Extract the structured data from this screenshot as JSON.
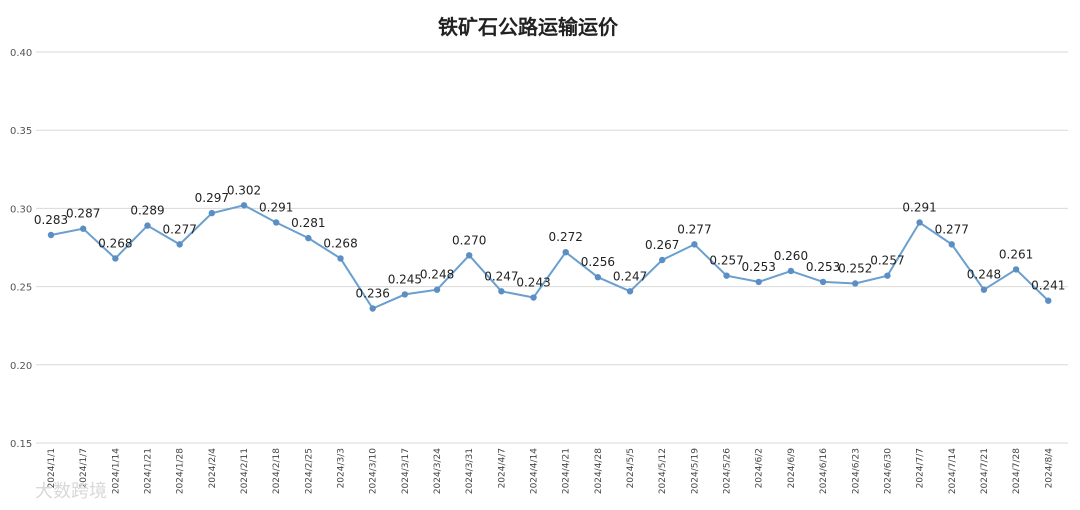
{
  "chart_data": {
    "type": "line",
    "title": "铁矿石公路运输运价",
    "xlabel": "",
    "ylabel": "",
    "ylim": [
      0.15,
      0.4
    ],
    "yticks": [
      "0.15",
      "0.20",
      "0.25",
      "0.30",
      "0.35",
      "0.40"
    ],
    "grid": true,
    "legend": "none",
    "color": "#6a9fcf",
    "categories": [
      "2024/1/1",
      "2024/1/7",
      "2024/1/14",
      "2024/1/21",
      "2024/1/28",
      "2024/2/4",
      "2024/2/11",
      "2024/2/18",
      "2024/2/25",
      "2024/3/3",
      "2024/3/10",
      "2024/3/17",
      "2024/3/24",
      "2024/3/31",
      "2024/4/7",
      "2024/4/14",
      "2024/4/21",
      "2024/4/28",
      "2024/5/5",
      "2024/5/12",
      "2024/5/19",
      "2024/5/26",
      "2024/6/2",
      "2024/6/9",
      "2024/6/16",
      "2024/6/23",
      "2024/6/30",
      "2024/7/7",
      "2024/7/14",
      "2024/7/21",
      "2024/7/28",
      "2024/8/4"
    ],
    "values": [
      0.283,
      0.287,
      0.268,
      0.289,
      0.277,
      0.297,
      0.302,
      0.291,
      0.281,
      0.268,
      0.236,
      0.245,
      0.248,
      0.27,
      0.247,
      0.243,
      0.272,
      0.256,
      0.247,
      0.267,
      0.277,
      0.257,
      0.253,
      0.26,
      0.253,
      0.252,
      0.257,
      0.291,
      0.277,
      0.248,
      0.261,
      0.241
    ],
    "data_labels": [
      "0.283",
      "0.287",
      "0.268",
      "0.289",
      "0.277",
      "0.297",
      "0.302",
      "0.291",
      "0.281",
      "0.268",
      "0.236",
      "0.245",
      "0.248",
      "0.270",
      "0.247",
      "0.243",
      "0.272",
      "0.256",
      "0.247",
      "0.267",
      "0.277",
      "0.257",
      "0.253",
      "0.260",
      "0.253",
      "0.252",
      "0.257",
      "0.291",
      "0.277",
      "0.248",
      "0.261",
      "0.241"
    ]
  },
  "watermark": "大数跨境"
}
